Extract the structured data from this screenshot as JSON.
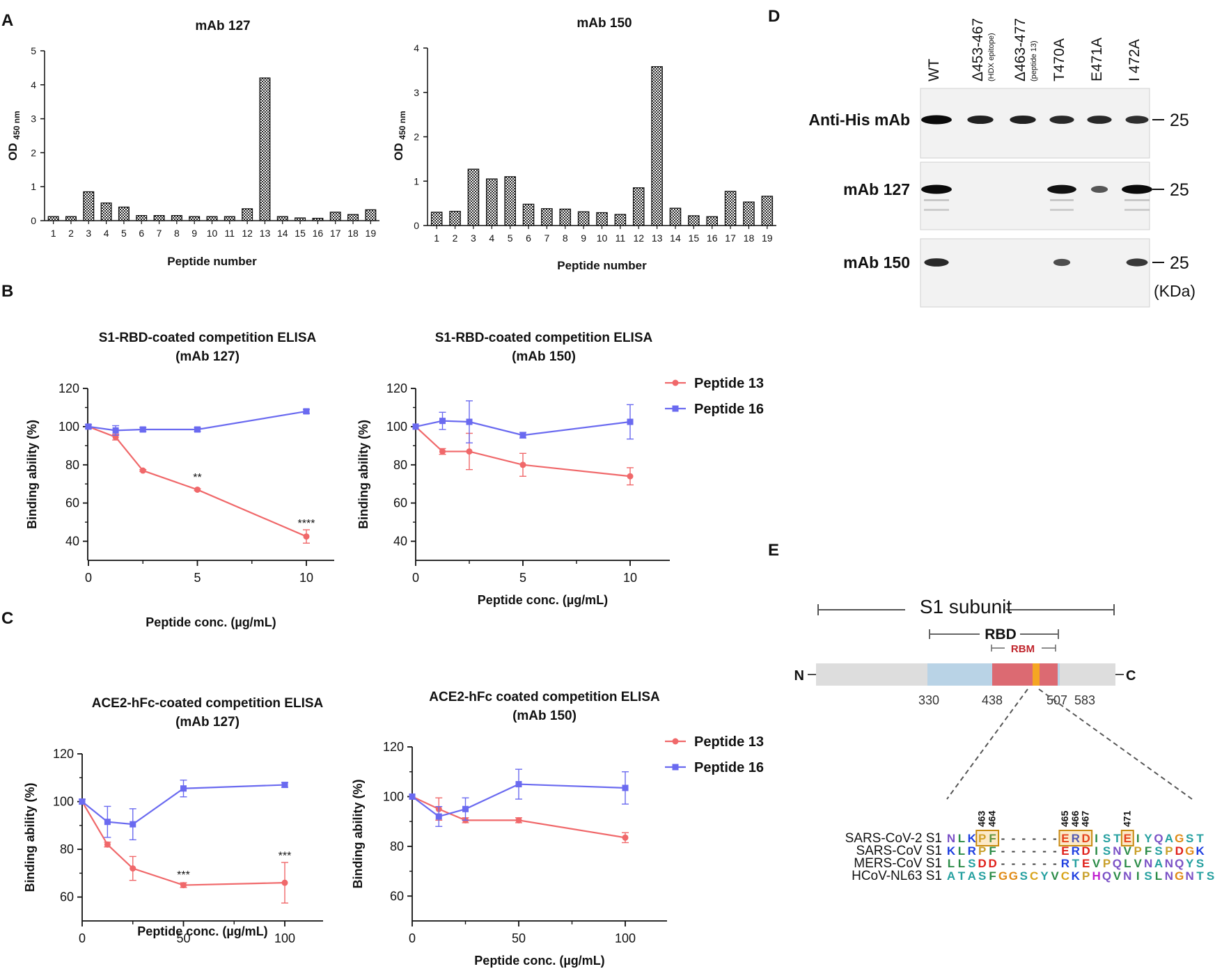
{
  "panel_letters": {
    "A": "A",
    "B": "B",
    "C": "C",
    "D": "D",
    "E": "E"
  },
  "colors": {
    "peptide13": "#f0686a",
    "peptide16": "#6a6af0",
    "rbd": "#b9d3e6",
    "rbm": "#dc6a72",
    "s1": "#dddddd",
    "epitope": "#f5a623"
  },
  "chart_data": [
    {
      "id": "A1",
      "type": "bar",
      "title": "mAb 127",
      "ylabel": "OD 450 nm",
      "xlabel": "Peptide number",
      "categories": [
        "1",
        "2",
        "3",
        "4",
        "5",
        "6",
        "7",
        "8",
        "9",
        "10",
        "11",
        "12",
        "13",
        "14",
        "15",
        "16",
        "17",
        "18",
        "19"
      ],
      "values": [
        0.12,
        0.12,
        0.85,
        0.52,
        0.4,
        0.15,
        0.15,
        0.15,
        0.12,
        0.12,
        0.12,
        0.35,
        4.2,
        0.12,
        0.08,
        0.07,
        0.25,
        0.18,
        0.32
      ],
      "ylim": [
        0,
        5
      ],
      "yticks": [
        "0",
        "1",
        "2",
        "3",
        "4",
        "5"
      ]
    },
    {
      "id": "A2",
      "type": "bar",
      "title": "mAb 150",
      "ylabel": "OD 450 nm",
      "xlabel": "Peptide number",
      "categories": [
        "1",
        "2",
        "3",
        "4",
        "5",
        "6",
        "7",
        "8",
        "9",
        "10",
        "11",
        "12",
        "13",
        "14",
        "15",
        "16",
        "17",
        "18",
        "19"
      ],
      "values": [
        0.3,
        0.32,
        1.27,
        1.05,
        1.1,
        0.48,
        0.38,
        0.37,
        0.31,
        0.29,
        0.25,
        0.85,
        3.58,
        0.39,
        0.22,
        0.2,
        0.77,
        0.53,
        0.66
      ],
      "ylim": [
        0,
        4
      ],
      "yticks": [
        "0",
        "1",
        "2",
        "3",
        "4"
      ]
    },
    {
      "id": "B1",
      "type": "line",
      "title": "S1-RBD-coated competition ELISA",
      "subtitle": "(mAb 127)",
      "ylabel": "Binding ability (%)",
      "xlabel": "Peptide conc. (µg/mL)",
      "xlim": [
        0,
        11.5
      ],
      "ylim": [
        30,
        120
      ],
      "xticks": [
        "0",
        "5",
        "10"
      ],
      "yticks": [
        "40",
        "60",
        "80",
        "100",
        "120"
      ],
      "series": [
        {
          "name": "Peptide 13",
          "x": [
            0,
            1.25,
            2.5,
            5,
            10
          ],
          "y": [
            100,
            94.5,
            77,
            67,
            42.5
          ],
          "err": [
            0,
            1.5,
            0.5,
            0.5,
            3.5
          ]
        },
        {
          "name": "Peptide 16",
          "x": [
            0,
            1.25,
            2.5,
            5,
            10
          ],
          "y": [
            100,
            98,
            98.5,
            98.5,
            108
          ],
          "err": [
            1,
            2.5,
            1,
            1,
            1
          ]
        }
      ],
      "annotations": [
        {
          "x": 5,
          "y": 73,
          "text": "**"
        },
        {
          "x": 10,
          "y": 49,
          "text": "****"
        }
      ]
    },
    {
      "id": "B2",
      "type": "line",
      "title": "S1-RBD-coated competition ELISA",
      "subtitle": "(mAb 150)",
      "ylabel": "Binding ability (%)",
      "xlabel": "Peptide conc. (µg/mL)",
      "xlim": [
        0,
        12
      ],
      "ylim": [
        30,
        120
      ],
      "xticks": [
        "0",
        "5",
        "10"
      ],
      "yticks": [
        "40",
        "60",
        "80",
        "100",
        "120"
      ],
      "series": [
        {
          "name": "Peptide 13",
          "x": [
            0,
            1.25,
            2.5,
            5,
            10
          ],
          "y": [
            100,
            87,
            87,
            80,
            74
          ],
          "err": [
            0,
            1.5,
            9.5,
            6,
            4.5
          ]
        },
        {
          "name": "Peptide 16",
          "x": [
            0,
            1.25,
            2.5,
            5,
            10
          ],
          "y": [
            100,
            103,
            102.5,
            95.5,
            102.5
          ],
          "err": [
            0,
            4.5,
            11,
            1.5,
            9
          ]
        }
      ],
      "legend": [
        "Peptide 13",
        "Peptide 16"
      ]
    },
    {
      "id": "C1",
      "type": "line",
      "title": "ACE2-hFc-coated competition ELISA",
      "subtitle": "(mAb 127)",
      "ylabel": "Binding ability (%)",
      "xlabel": "Peptide conc. (µg/mL)",
      "xlim": [
        0,
        115
      ],
      "ylim": [
        50,
        120
      ],
      "xticks": [
        "0",
        "50",
        "100"
      ],
      "yticks": [
        "60",
        "80",
        "100",
        "120"
      ],
      "series": [
        {
          "name": "Peptide 13",
          "x": [
            0,
            12.5,
            25,
            50,
            100
          ],
          "y": [
            100,
            82,
            72,
            65,
            66
          ],
          "err": [
            0,
            1,
            5,
            1,
            8.5
          ]
        },
        {
          "name": "Peptide 16",
          "x": [
            0,
            12.5,
            25,
            50,
            100
          ],
          "y": [
            100,
            91.5,
            90.5,
            105.5,
            107
          ],
          "err": [
            1,
            6.5,
            6.5,
            3.5,
            1
          ]
        }
      ],
      "annotations": [
        {
          "x": 50,
          "y": 69,
          "text": "***"
        },
        {
          "x": 100,
          "y": 77,
          "text": "***"
        }
      ]
    },
    {
      "id": "C2",
      "type": "line",
      "title": "ACE2-hFc coated competition ELISA",
      "subtitle": "(mAb 150)",
      "ylabel": "Binding ability (%)",
      "xlabel": "Peptide conc. (µg/mL)",
      "xlim": [
        0,
        120
      ],
      "ylim": [
        50,
        120
      ],
      "xticks": [
        "0",
        "50",
        "100"
      ],
      "yticks": [
        "60",
        "80",
        "100",
        "120"
      ],
      "series": [
        {
          "name": "Peptide 13",
          "x": [
            0,
            12.5,
            25,
            50,
            100
          ],
          "y": [
            100,
            95,
            90.5,
            90.5,
            83.5
          ],
          "err": [
            0,
            4.5,
            1,
            1,
            2
          ]
        },
        {
          "name": "Peptide 16",
          "x": [
            0,
            12.5,
            25,
            50,
            100
          ],
          "y": [
            100,
            92,
            95,
            105,
            103.5
          ],
          "err": [
            0,
            4,
            4.5,
            6,
            6.5
          ]
        }
      ],
      "legend": [
        "Peptide 13",
        "Peptide 16"
      ]
    }
  ],
  "western": {
    "lanes": [
      {
        "label": "WT",
        "sub": ""
      },
      {
        "label": "Δ453-467",
        "sub": "(HDX epitope)"
      },
      {
        "label": "Δ463-477",
        "sub": "(peptide 13)"
      },
      {
        "label": "T470A",
        "sub": ""
      },
      {
        "label": "E471A",
        "sub": ""
      },
      {
        "label": "I 472A",
        "sub": ""
      }
    ],
    "rows": [
      {
        "label": "Anti-His mAb",
        "marker": "25",
        "bands": [
          1,
          0.85,
          0.85,
          0.8,
          0.8,
          0.75
        ]
      },
      {
        "label": "mAb 127",
        "marker": "25",
        "bands": [
          1,
          0,
          0,
          0.95,
          0.5,
          1
        ]
      },
      {
        "label": "mAb 150",
        "marker": "25",
        "bands": [
          0.8,
          0,
          0,
          0.55,
          0,
          0.7
        ]
      }
    ],
    "unit": "(KDa)"
  },
  "domain": {
    "s1_label": "S1 subunit",
    "rbd_label": "RBD",
    "rbm_label": "RBM",
    "n_term": "N",
    "c_term": "C",
    "positions": [
      "330",
      "438",
      "507",
      "583"
    ],
    "alignment": [
      {
        "name": "SARS-CoV-2 S1",
        "seq": "NLKPF------ERDISTEIYQAGST"
      },
      {
        "name": "SARS-CoV S1",
        "seq": "KLRPF------ERDISNVPFSPDGK"
      },
      {
        "name": "MERS-CoV S1",
        "seq": "LLSDD------RTEVPQLVNANQYS"
      },
      {
        "name": "HCoV-NL63 S1",
        "seq": "ATASFGGSCYVCKPHQVNISLNGNTS"
      }
    ],
    "residue_numbers": [
      "463",
      "464",
      "465",
      "466",
      "467",
      "471"
    ]
  }
}
